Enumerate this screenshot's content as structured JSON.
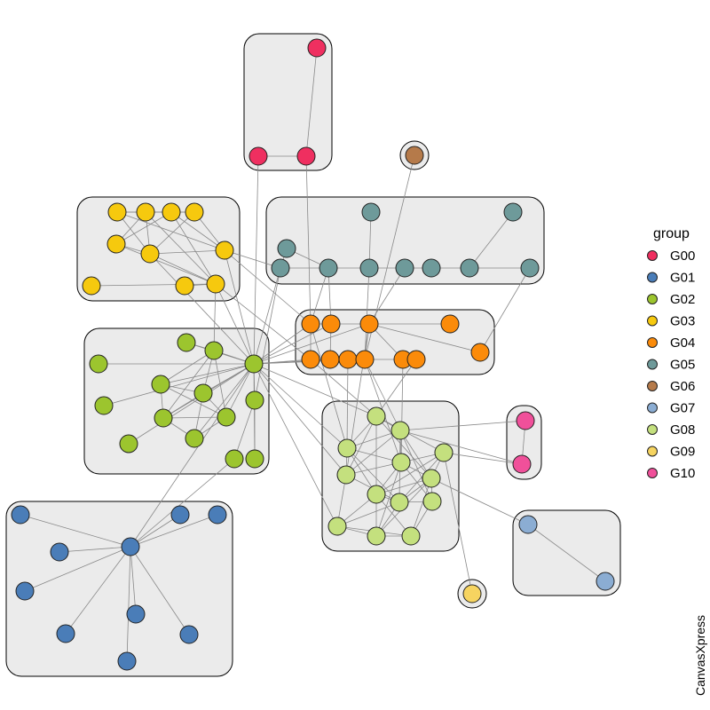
{
  "legend": {
    "title": "group",
    "items": [
      {
        "label": "G00",
        "color": "#ef2f60"
      },
      {
        "label": "G01",
        "color": "#4a7db8"
      },
      {
        "label": "G02",
        "color": "#9cc52e"
      },
      {
        "label": "G03",
        "color": "#f6c90e"
      },
      {
        "label": "G04",
        "color": "#fb8b0a"
      },
      {
        "label": "G05",
        "color": "#6e9a9a"
      },
      {
        "label": "G06",
        "color": "#b57a4a"
      },
      {
        "label": "G07",
        "color": "#8badd3"
      },
      {
        "label": "G08",
        "color": "#c4e07e"
      },
      {
        "label": "G09",
        "color": "#f6d460"
      },
      {
        "label": "G10",
        "color": "#f0509a"
      }
    ]
  },
  "watermark": "CanvasXpress"
}
